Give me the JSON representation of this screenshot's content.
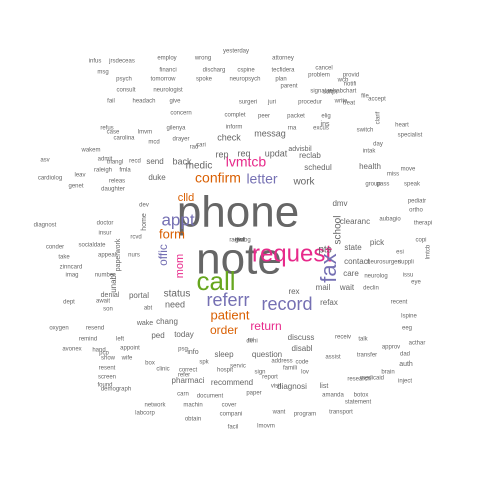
{
  "palette": {
    "grey": "#666666",
    "green": "#66a61e",
    "magenta": "#e7298a",
    "purple": "#7570b3",
    "orange": "#d95f02",
    "teal": "#1b9e77",
    "gold": "#e6ab02",
    "brown": "#a6761d"
  },
  "words": [
    {
      "text": "phone",
      "size": 44,
      "color": "#666666"
    },
    {
      "text": "note",
      "size": 44,
      "color": "#666666"
    },
    {
      "text": "call",
      "size": 26,
      "color": "#66a61e"
    },
    {
      "text": "request",
      "size": 24,
      "color": "#e7298a"
    },
    {
      "text": "fax",
      "size": 22,
      "color": "#7570b3"
    },
    {
      "text": "referr",
      "size": 18,
      "color": "#7570b3"
    },
    {
      "text": "record",
      "size": 18,
      "color": "#7570b3"
    },
    {
      "text": "appt",
      "size": 17,
      "color": "#7570b3"
    },
    {
      "text": "confirm",
      "size": 14,
      "color": "#d95f02"
    },
    {
      "text": "letter",
      "size": 14,
      "color": "#7570b3"
    },
    {
      "text": "lvmtcb",
      "size": 14,
      "color": "#e7298a"
    },
    {
      "text": "form",
      "size": 13,
      "color": "#d95f02"
    },
    {
      "text": "patient",
      "size": 13,
      "color": "#d95f02"
    },
    {
      "text": "return",
      "size": 12,
      "color": "#e7298a"
    },
    {
      "text": "order",
      "size": 12,
      "color": "#d95f02"
    },
    {
      "text": "offic",
      "size": 12,
      "color": "#7570b3"
    },
    {
      "text": "mom",
      "size": 11,
      "color": "#e7298a"
    },
    {
      "text": "clld",
      "size": 11,
      "color": "#d95f02"
    },
    {
      "text": "work",
      "size": 10,
      "color": "#666666"
    },
    {
      "text": "school",
      "size": 10,
      "color": "#666666"
    },
    {
      "text": "pts",
      "size": 10,
      "color": "#666666"
    },
    {
      "text": "medic",
      "size": 10,
      "color": "#666666"
    },
    {
      "text": "status",
      "size": 10,
      "color": "#666666"
    },
    {
      "text": "rep",
      "size": 9,
      "color": "#666666"
    },
    {
      "text": "req",
      "size": 9,
      "color": "#666666"
    },
    {
      "text": "updat",
      "size": 9,
      "color": "#666666"
    },
    {
      "text": "check",
      "size": 9,
      "color": "#666666"
    },
    {
      "text": "messag",
      "size": 9,
      "color": "#666666"
    },
    {
      "text": "need",
      "size": 9,
      "color": "#666666"
    },
    {
      "text": "back",
      "size": 9,
      "color": "#666666"
    },
    {
      "text": "send",
      "size": 8,
      "color": "#666666"
    },
    {
      "text": "duke",
      "size": 8,
      "color": "#666666"
    },
    {
      "text": "mail",
      "size": 8,
      "color": "#666666"
    },
    {
      "text": "wait",
      "size": 8,
      "color": "#666666"
    },
    {
      "text": "refax",
      "size": 8,
      "color": "#666666"
    },
    {
      "text": "discuss",
      "size": 8,
      "color": "#666666"
    },
    {
      "text": "disabl",
      "size": 8,
      "color": "#666666"
    },
    {
      "text": "rex",
      "size": 8,
      "color": "#666666"
    },
    {
      "text": "contact",
      "size": 8,
      "color": "#666666"
    },
    {
      "text": "care",
      "size": 8,
      "color": "#666666"
    },
    {
      "text": "state",
      "size": 8,
      "color": "#666666"
    },
    {
      "text": "pick",
      "size": 8,
      "color": "#666666"
    },
    {
      "text": "clearanc",
      "size": 8,
      "color": "#666666"
    },
    {
      "text": "dmv",
      "size": 8,
      "color": "#666666"
    },
    {
      "text": "schedul",
      "size": 8,
      "color": "#666666"
    },
    {
      "text": "health",
      "size": 8,
      "color": "#666666"
    },
    {
      "text": "reclab",
      "size": 8,
      "color": "#666666"
    },
    {
      "text": "advisbil",
      "size": 7,
      "color": "#666666"
    },
    {
      "text": "ins",
      "size": 7,
      "color": "#666666"
    },
    {
      "text": "sleep",
      "size": 8,
      "color": "#666666"
    },
    {
      "text": "question",
      "size": 8,
      "color": "#666666"
    },
    {
      "text": "recommend",
      "size": 8,
      "color": "#666666"
    },
    {
      "text": "diagnosi",
      "size": 8,
      "color": "#666666"
    },
    {
      "text": "pharmaci",
      "size": 8,
      "color": "#666666"
    },
    {
      "text": "today",
      "size": 8,
      "color": "#666666"
    },
    {
      "text": "ped",
      "size": 8,
      "color": "#666666"
    },
    {
      "text": "chang",
      "size": 8,
      "color": "#666666"
    },
    {
      "text": "portal",
      "size": 8,
      "color": "#666666"
    },
    {
      "text": "denial",
      "size": 7,
      "color": "#666666"
    },
    {
      "text": "unabl",
      "size": 8,
      "color": "#666666"
    },
    {
      "text": "paperwork",
      "size": 7,
      "color": "#666666"
    },
    {
      "text": "home",
      "size": 7,
      "color": "#666666"
    },
    {
      "text": "yesterday",
      "size": 6,
      "color": "#666666"
    },
    {
      "text": "employ",
      "size": 6,
      "color": "#666666"
    },
    {
      "text": "wrong",
      "size": 6,
      "color": "#666666"
    },
    {
      "text": "attorney",
      "size": 6,
      "color": "#666666"
    },
    {
      "text": "financi",
      "size": 6,
      "color": "#666666"
    },
    {
      "text": "discharg",
      "size": 6,
      "color": "#666666"
    },
    {
      "text": "cspine",
      "size": 6,
      "color": "#666666"
    },
    {
      "text": "tecfidera",
      "size": 6,
      "color": "#666666"
    },
    {
      "text": "cancel",
      "size": 6,
      "color": "#666666"
    },
    {
      "text": "problem",
      "size": 6,
      "color": "#666666"
    },
    {
      "text": "psych",
      "size": 6,
      "color": "#666666"
    },
    {
      "text": "tomorrow",
      "size": 6,
      "color": "#666666"
    },
    {
      "text": "spoke",
      "size": 6,
      "color": "#666666"
    },
    {
      "text": "neuropsych",
      "size": 6,
      "color": "#666666"
    },
    {
      "text": "plan",
      "size": 6,
      "color": "#666666"
    },
    {
      "text": "parent",
      "size": 6,
      "color": "#666666"
    },
    {
      "text": "consult",
      "size": 6,
      "color": "#666666"
    },
    {
      "text": "neurologist",
      "size": 6,
      "color": "#666666"
    },
    {
      "text": "fail",
      "size": 6,
      "color": "#666666"
    },
    {
      "text": "headach",
      "size": 6,
      "color": "#666666"
    },
    {
      "text": "give",
      "size": 6,
      "color": "#666666"
    },
    {
      "text": "surgeri",
      "size": 6,
      "color": "#666666"
    },
    {
      "text": "juri",
      "size": 6,
      "color": "#666666"
    },
    {
      "text": "procedur",
      "size": 6,
      "color": "#666666"
    },
    {
      "text": "write",
      "size": 6,
      "color": "#666666"
    },
    {
      "text": "accept",
      "size": 6,
      "color": "#666666"
    },
    {
      "text": "treat",
      "size": 6,
      "color": "#666666"
    },
    {
      "text": "concern",
      "size": 6,
      "color": "#666666"
    },
    {
      "text": "complet",
      "size": 6,
      "color": "#666666"
    },
    {
      "text": "peer",
      "size": 6,
      "color": "#666666"
    },
    {
      "text": "packet",
      "size": 6,
      "color": "#666666"
    },
    {
      "text": "elig",
      "size": 6,
      "color": "#666666"
    },
    {
      "text": "refus",
      "size": 6,
      "color": "#666666"
    },
    {
      "text": "case",
      "size": 6,
      "color": "#666666"
    },
    {
      "text": "lmvm",
      "size": 6,
      "color": "#666666"
    },
    {
      "text": "gilenya",
      "size": 6,
      "color": "#666666"
    },
    {
      "text": "inform",
      "size": 6,
      "color": "#666666"
    },
    {
      "text": "rna",
      "size": 6,
      "color": "#666666"
    },
    {
      "text": "excus",
      "size": 6,
      "color": "#666666"
    },
    {
      "text": "switch",
      "size": 6,
      "color": "#666666"
    },
    {
      "text": "heart",
      "size": 6,
      "color": "#666666"
    },
    {
      "text": "specialist",
      "size": 6,
      "color": "#666666"
    },
    {
      "text": "cardiolog",
      "size": 6,
      "color": "#666666"
    },
    {
      "text": "genet",
      "size": 6,
      "color": "#666666"
    },
    {
      "text": "leav",
      "size": 6,
      "color": "#666666"
    },
    {
      "text": "releas",
      "size": 6,
      "color": "#666666"
    },
    {
      "text": "daughter",
      "size": 6,
      "color": "#666666"
    },
    {
      "text": "dev",
      "size": 6,
      "color": "#666666"
    },
    {
      "text": "diagnost",
      "size": 6,
      "color": "#666666"
    },
    {
      "text": "conder",
      "size": 6,
      "color": "#666666"
    },
    {
      "text": "socialdate",
      "size": 6,
      "color": "#666666"
    },
    {
      "text": "take",
      "size": 6,
      "color": "#666666"
    },
    {
      "text": "appeal",
      "size": 6,
      "color": "#666666"
    },
    {
      "text": "nurs",
      "size": 6,
      "color": "#666666"
    },
    {
      "text": "zinncard",
      "size": 6,
      "color": "#666666"
    },
    {
      "text": "imag",
      "size": 6,
      "color": "#666666"
    },
    {
      "text": "number",
      "size": 6,
      "color": "#666666"
    },
    {
      "text": "dept",
      "size": 6,
      "color": "#666666"
    },
    {
      "text": "await",
      "size": 6,
      "color": "#666666"
    },
    {
      "text": "son",
      "size": 6,
      "color": "#666666"
    },
    {
      "text": "oxygen",
      "size": 6,
      "color": "#666666"
    },
    {
      "text": "resend",
      "size": 6,
      "color": "#666666"
    },
    {
      "text": "remind",
      "size": 6,
      "color": "#666666"
    },
    {
      "text": "left",
      "size": 6,
      "color": "#666666"
    },
    {
      "text": "hand",
      "size": 6,
      "color": "#666666"
    },
    {
      "text": "appoint",
      "size": 6,
      "color": "#666666"
    },
    {
      "text": "avonex",
      "size": 6,
      "color": "#666666"
    },
    {
      "text": "show",
      "size": 6,
      "color": "#666666"
    },
    {
      "text": "wife",
      "size": 6,
      "color": "#666666"
    },
    {
      "text": "resent",
      "size": 6,
      "color": "#666666"
    },
    {
      "text": "screen",
      "size": 6,
      "color": "#666666"
    },
    {
      "text": "found",
      "size": 6,
      "color": "#666666"
    },
    {
      "text": "demograph",
      "size": 6,
      "color": "#666666"
    },
    {
      "text": "network",
      "size": 6,
      "color": "#666666"
    },
    {
      "text": "machin",
      "size": 6,
      "color": "#666666"
    },
    {
      "text": "cover",
      "size": 6,
      "color": "#666666"
    },
    {
      "text": "labcorp",
      "size": 6,
      "color": "#666666"
    },
    {
      "text": "obtain",
      "size": 6,
      "color": "#666666"
    },
    {
      "text": "compani",
      "size": 6,
      "color": "#666666"
    },
    {
      "text": "want",
      "size": 6,
      "color": "#666666"
    },
    {
      "text": "program",
      "size": 6,
      "color": "#666666"
    },
    {
      "text": "facil",
      "size": 6,
      "color": "#666666"
    },
    {
      "text": "lmovm",
      "size": 6,
      "color": "#666666"
    },
    {
      "text": "document",
      "size": 6,
      "color": "#666666"
    },
    {
      "text": "carn",
      "size": 6,
      "color": "#666666"
    },
    {
      "text": "paper",
      "size": 6,
      "color": "#666666"
    },
    {
      "text": "amanda",
      "size": 6,
      "color": "#666666"
    },
    {
      "text": "statement",
      "size": 6,
      "color": "#666666"
    },
    {
      "text": "transport",
      "size": 6,
      "color": "#666666"
    },
    {
      "text": "research",
      "size": 6,
      "color": "#666666"
    },
    {
      "text": "botox",
      "size": 6,
      "color": "#666666"
    },
    {
      "text": "inject",
      "size": 6,
      "color": "#666666"
    },
    {
      "text": "medicaid",
      "size": 6,
      "color": "#666666"
    },
    {
      "text": "transfer",
      "size": 6,
      "color": "#666666"
    },
    {
      "text": "assist",
      "size": 6,
      "color": "#666666"
    },
    {
      "text": "receiv",
      "size": 6,
      "color": "#666666"
    },
    {
      "text": "approv",
      "size": 6,
      "color": "#666666"
    },
    {
      "text": "talk",
      "size": 6,
      "color": "#666666"
    },
    {
      "text": "dad",
      "size": 6,
      "color": "#666666"
    },
    {
      "text": "eeg",
      "size": 6,
      "color": "#666666"
    },
    {
      "text": "acthar",
      "size": 6,
      "color": "#666666"
    },
    {
      "text": "lspine",
      "size": 6,
      "color": "#666666"
    },
    {
      "text": "recent",
      "size": 6,
      "color": "#666666"
    },
    {
      "text": "declin",
      "size": 6,
      "color": "#666666"
    },
    {
      "text": "neurolog",
      "size": 6,
      "color": "#666666"
    },
    {
      "text": "lmtcb",
      "size": 6,
      "color": "#666666"
    },
    {
      "text": "neurosurgeri",
      "size": 6,
      "color": "#666666"
    },
    {
      "text": "suppli",
      "size": 6,
      "color": "#666666"
    },
    {
      "text": "issu",
      "size": 6,
      "color": "#666666"
    },
    {
      "text": "eye",
      "size": 6,
      "color": "#666666"
    },
    {
      "text": "esi",
      "size": 6,
      "color": "#666666"
    },
    {
      "text": "copi",
      "size": 6,
      "color": "#666666"
    },
    {
      "text": "ortho",
      "size": 6,
      "color": "#666666"
    },
    {
      "text": "pediatr",
      "size": 6,
      "color": "#666666"
    },
    {
      "text": "therapi",
      "size": 6,
      "color": "#666666"
    },
    {
      "text": "aubagio",
      "size": 6,
      "color": "#666666"
    },
    {
      "text": "speak",
      "size": 6,
      "color": "#666666"
    },
    {
      "text": "miss",
      "size": 6,
      "color": "#666666"
    },
    {
      "text": "move",
      "size": 6,
      "color": "#666666"
    },
    {
      "text": "pass",
      "size": 6,
      "color": "#666666"
    },
    {
      "text": "group",
      "size": 6,
      "color": "#666666"
    },
    {
      "text": "intak",
      "size": 6,
      "color": "#666666"
    },
    {
      "text": "day",
      "size": 6,
      "color": "#666666"
    },
    {
      "text": "clarif",
      "size": 6,
      "color": "#666666"
    },
    {
      "text": "file",
      "size": 6,
      "color": "#666666"
    },
    {
      "text": "rehabchart",
      "size": 6,
      "color": "#666666"
    },
    {
      "text": "signatur",
      "size": 6,
      "color": "#666666"
    },
    {
      "text": "script",
      "size": 6,
      "color": "#666666"
    },
    {
      "text": "wcb",
      "size": 6,
      "color": "#666666"
    },
    {
      "text": "provid",
      "size": 6,
      "color": "#666666"
    },
    {
      "text": "notifi",
      "size": 6,
      "color": "#666666"
    },
    {
      "text": "infus",
      "size": 6,
      "color": "#666666"
    },
    {
      "text": "jrsdeceas",
      "size": 6,
      "color": "#666666"
    },
    {
      "text": "mcd",
      "size": 6,
      "color": "#666666"
    },
    {
      "text": "rad",
      "size": 6,
      "color": "#666666"
    },
    {
      "text": "msg",
      "size": 6,
      "color": "#666666"
    },
    {
      "text": "carolina",
      "size": 6,
      "color": "#666666"
    },
    {
      "text": "wakem",
      "size": 6,
      "color": "#666666"
    },
    {
      "text": "admit",
      "size": 6,
      "color": "#666666"
    },
    {
      "text": "recd",
      "size": 6,
      "color": "#666666"
    },
    {
      "text": "cari",
      "size": 6,
      "color": "#666666"
    },
    {
      "text": "triangl",
      "size": 6,
      "color": "#666666"
    },
    {
      "text": "raleigh",
      "size": 6,
      "color": "#666666"
    },
    {
      "text": "fmla",
      "size": 6,
      "color": "#666666"
    },
    {
      "text": "drayer",
      "size": 6,
      "color": "#666666"
    },
    {
      "text": "asv",
      "size": 6,
      "color": "#666666"
    },
    {
      "text": "doctor",
      "size": 6,
      "color": "#666666"
    },
    {
      "text": "insur",
      "size": 6,
      "color": "#666666"
    },
    {
      "text": "rcvd",
      "size": 6,
      "color": "#666666"
    },
    {
      "text": "abt",
      "size": 6,
      "color": "#666666"
    },
    {
      "text": "box",
      "size": 6,
      "color": "#666666"
    },
    {
      "text": "pcp",
      "size": 6,
      "color": "#666666"
    },
    {
      "text": "wake",
      "size": 7,
      "color": "#666666"
    },
    {
      "text": "info",
      "size": 7,
      "color": "#666666"
    },
    {
      "text": "psg",
      "size": 6,
      "color": "#666666"
    },
    {
      "text": "correct",
      "size": 6,
      "color": "#666666"
    },
    {
      "text": "clinic",
      "size": 6,
      "color": "#666666"
    },
    {
      "text": "spk",
      "size": 6,
      "color": "#666666"
    },
    {
      "text": "refer",
      "size": 6,
      "color": "#666666"
    },
    {
      "text": "hospit",
      "size": 6,
      "color": "#666666"
    },
    {
      "text": "servic",
      "size": 6,
      "color": "#666666"
    },
    {
      "text": "famili",
      "size": 6,
      "color": "#666666"
    },
    {
      "text": "sign",
      "size": 6,
      "color": "#666666"
    },
    {
      "text": "report",
      "size": 6,
      "color": "#666666"
    },
    {
      "text": "visit",
      "size": 6,
      "color": "#666666"
    },
    {
      "text": "address",
      "size": 6,
      "color": "#666666"
    },
    {
      "text": "roi",
      "size": 6,
      "color": "#666666"
    },
    {
      "text": "deni",
      "size": 6,
      "color": "#666666"
    },
    {
      "text": "code",
      "size": 6,
      "color": "#666666"
    },
    {
      "text": "lov",
      "size": 6,
      "color": "#666666"
    },
    {
      "text": "list",
      "size": 7,
      "color": "#666666"
    },
    {
      "text": "auth",
      "size": 7,
      "color": "#666666"
    },
    {
      "text": "brain",
      "size": 6,
      "color": "#666666"
    },
    {
      "text": "test",
      "size": 6,
      "color": "#666666"
    },
    {
      "text": "radiolog",
      "size": 6,
      "color": "#666666"
    },
    {
      "text": "eval",
      "size": 6,
      "color": "#666666"
    },
    {
      "text": "givr",
      "size": 6,
      "color": "#666666"
    }
  ]
}
